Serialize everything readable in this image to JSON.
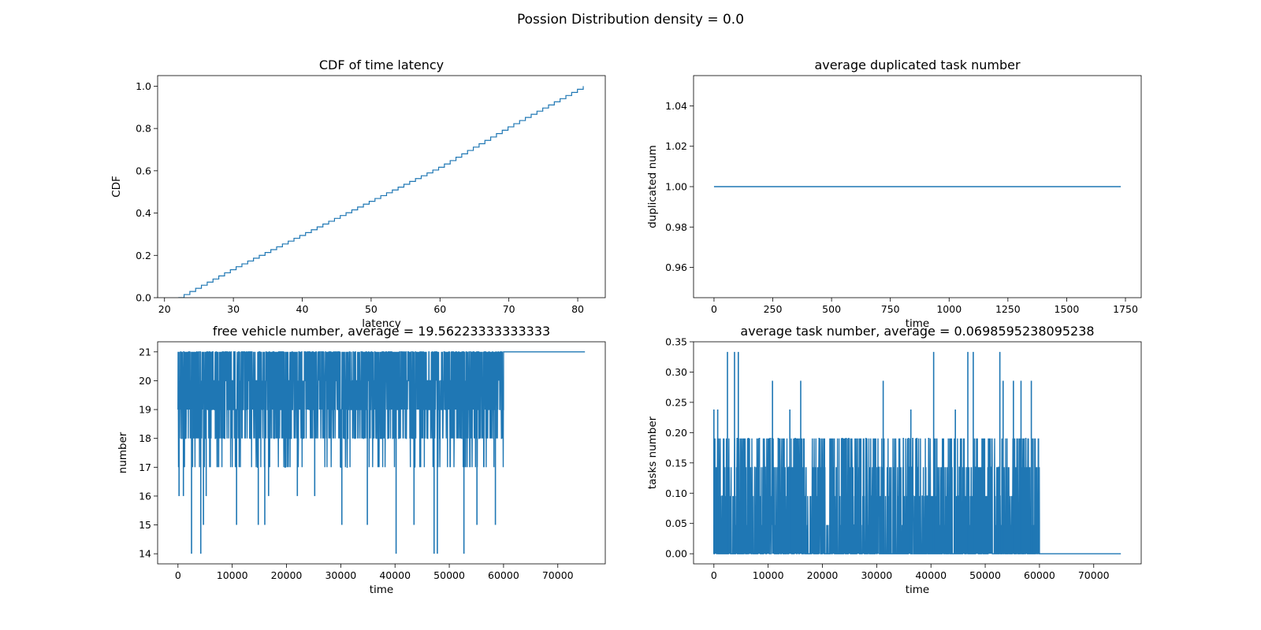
{
  "suptitle": "Possion Distribution density = 0.0",
  "colors": {
    "series": "#1f77b4"
  },
  "chart_data": [
    {
      "type": "line",
      "style": "step",
      "title": "CDF of time latency",
      "xlabel": "latency",
      "ylabel": "CDF",
      "xlim": [
        19,
        84
      ],
      "ylim": [
        0,
        1.05
      ],
      "xticks": [
        20,
        30,
        40,
        50,
        60,
        70,
        80
      ],
      "yticks": [
        0.0,
        0.2,
        0.4,
        0.6,
        0.8,
        1.0
      ],
      "ytick_decimals": 1,
      "series": [
        {
          "x": [
            22,
            30,
            40,
            50,
            60,
            70,
            80.8
          ],
          "values": [
            0.0,
            0.14,
            0.3,
            0.46,
            0.62,
            0.81,
            1.0
          ]
        }
      ]
    },
    {
      "type": "line",
      "title": "average duplicated task number",
      "xlabel": "time",
      "ylabel": "duplicated num",
      "xlim": [
        -87,
        1817
      ],
      "ylim": [
        0.945,
        1.055
      ],
      "xticks": [
        0,
        250,
        500,
        750,
        1000,
        1250,
        1500,
        1750
      ],
      "yticks": [
        0.96,
        0.98,
        1.0,
        1.02,
        1.04
      ],
      "ytick_decimals": 2,
      "series": [
        {
          "x": [
            0,
            1730
          ],
          "values": [
            1.0,
            1.0
          ]
        }
      ]
    },
    {
      "type": "line",
      "title": "free vehicle number, average = 19.56223333333333",
      "xlabel": "time",
      "ylabel": "number",
      "xlim": [
        -3750,
        78750
      ],
      "ylim": [
        13.65,
        21.35
      ],
      "xticks": [
        0,
        10000,
        20000,
        30000,
        40000,
        50000,
        60000,
        70000
      ],
      "yticks": [
        14,
        15,
        16,
        17,
        18,
        19,
        20,
        21
      ],
      "ytick_decimals": 0,
      "noise": {
        "x_start": 0,
        "x_end": 60000,
        "band_low": 18,
        "band_high": 21,
        "mid_low": 17,
        "mid_high": 19,
        "after": 21,
        "x_final": 75000
      },
      "spikes": [
        {
          "x": 2500,
          "y": 14
        },
        {
          "x": 4200,
          "y": 14
        },
        {
          "x": 4700,
          "y": 15
        },
        {
          "x": 10800,
          "y": 15
        },
        {
          "x": 14800,
          "y": 15
        },
        {
          "x": 16000,
          "y": 15
        },
        {
          "x": 16700,
          "y": 16
        },
        {
          "x": 30200,
          "y": 15
        },
        {
          "x": 34900,
          "y": 15
        },
        {
          "x": 40200,
          "y": 14
        },
        {
          "x": 43500,
          "y": 15
        },
        {
          "x": 47200,
          "y": 14
        },
        {
          "x": 47800,
          "y": 14
        },
        {
          "x": 52700,
          "y": 14
        },
        {
          "x": 55100,
          "y": 15
        },
        {
          "x": 58500,
          "y": 15
        },
        {
          "x": 200,
          "y": 16
        },
        {
          "x": 1000,
          "y": 16
        },
        {
          "x": 5200,
          "y": 16
        },
        {
          "x": 22000,
          "y": 16
        },
        {
          "x": 25200,
          "y": 16
        }
      ]
    },
    {
      "type": "line",
      "title": "average task number, average = 0.0698595238095238",
      "xlabel": "time",
      "ylabel": "tasks number",
      "xlim": [
        -3750,
        78750
      ],
      "ylim": [
        -0.0167,
        0.35
      ],
      "xticks": [
        0,
        10000,
        20000,
        30000,
        40000,
        50000,
        60000,
        70000
      ],
      "yticks": [
        0.0,
        0.05,
        0.1,
        0.15,
        0.2,
        0.25,
        0.3,
        0.35
      ],
      "ytick_decimals": 2,
      "noise": {
        "x_start": 0,
        "x_end": 60000,
        "levels": [
          0.0,
          0.0476,
          0.0952,
          0.1429,
          0.1905
        ],
        "after": 0.0,
        "x_final": 75000
      },
      "spikes": [
        {
          "x": 2500,
          "y": 0.3333
        },
        {
          "x": 3800,
          "y": 0.3333
        },
        {
          "x": 4500,
          "y": 0.3333
        },
        {
          "x": 10800,
          "y": 0.2857
        },
        {
          "x": 16000,
          "y": 0.2857
        },
        {
          "x": 31200,
          "y": 0.2857
        },
        {
          "x": 40500,
          "y": 0.3333
        },
        {
          "x": 46800,
          "y": 0.3333
        },
        {
          "x": 47800,
          "y": 0.3333
        },
        {
          "x": 52700,
          "y": 0.3333
        },
        {
          "x": 53300,
          "y": 0.2857
        },
        {
          "x": 55200,
          "y": 0.2857
        },
        {
          "x": 56600,
          "y": 0.2857
        },
        {
          "x": 58500,
          "y": 0.2857
        },
        {
          "x": 0,
          "y": 0.2381
        },
        {
          "x": 700,
          "y": 0.2381
        },
        {
          "x": 14000,
          "y": 0.2381
        },
        {
          "x": 36300,
          "y": 0.2381
        },
        {
          "x": 44500,
          "y": 0.2381
        }
      ]
    }
  ]
}
